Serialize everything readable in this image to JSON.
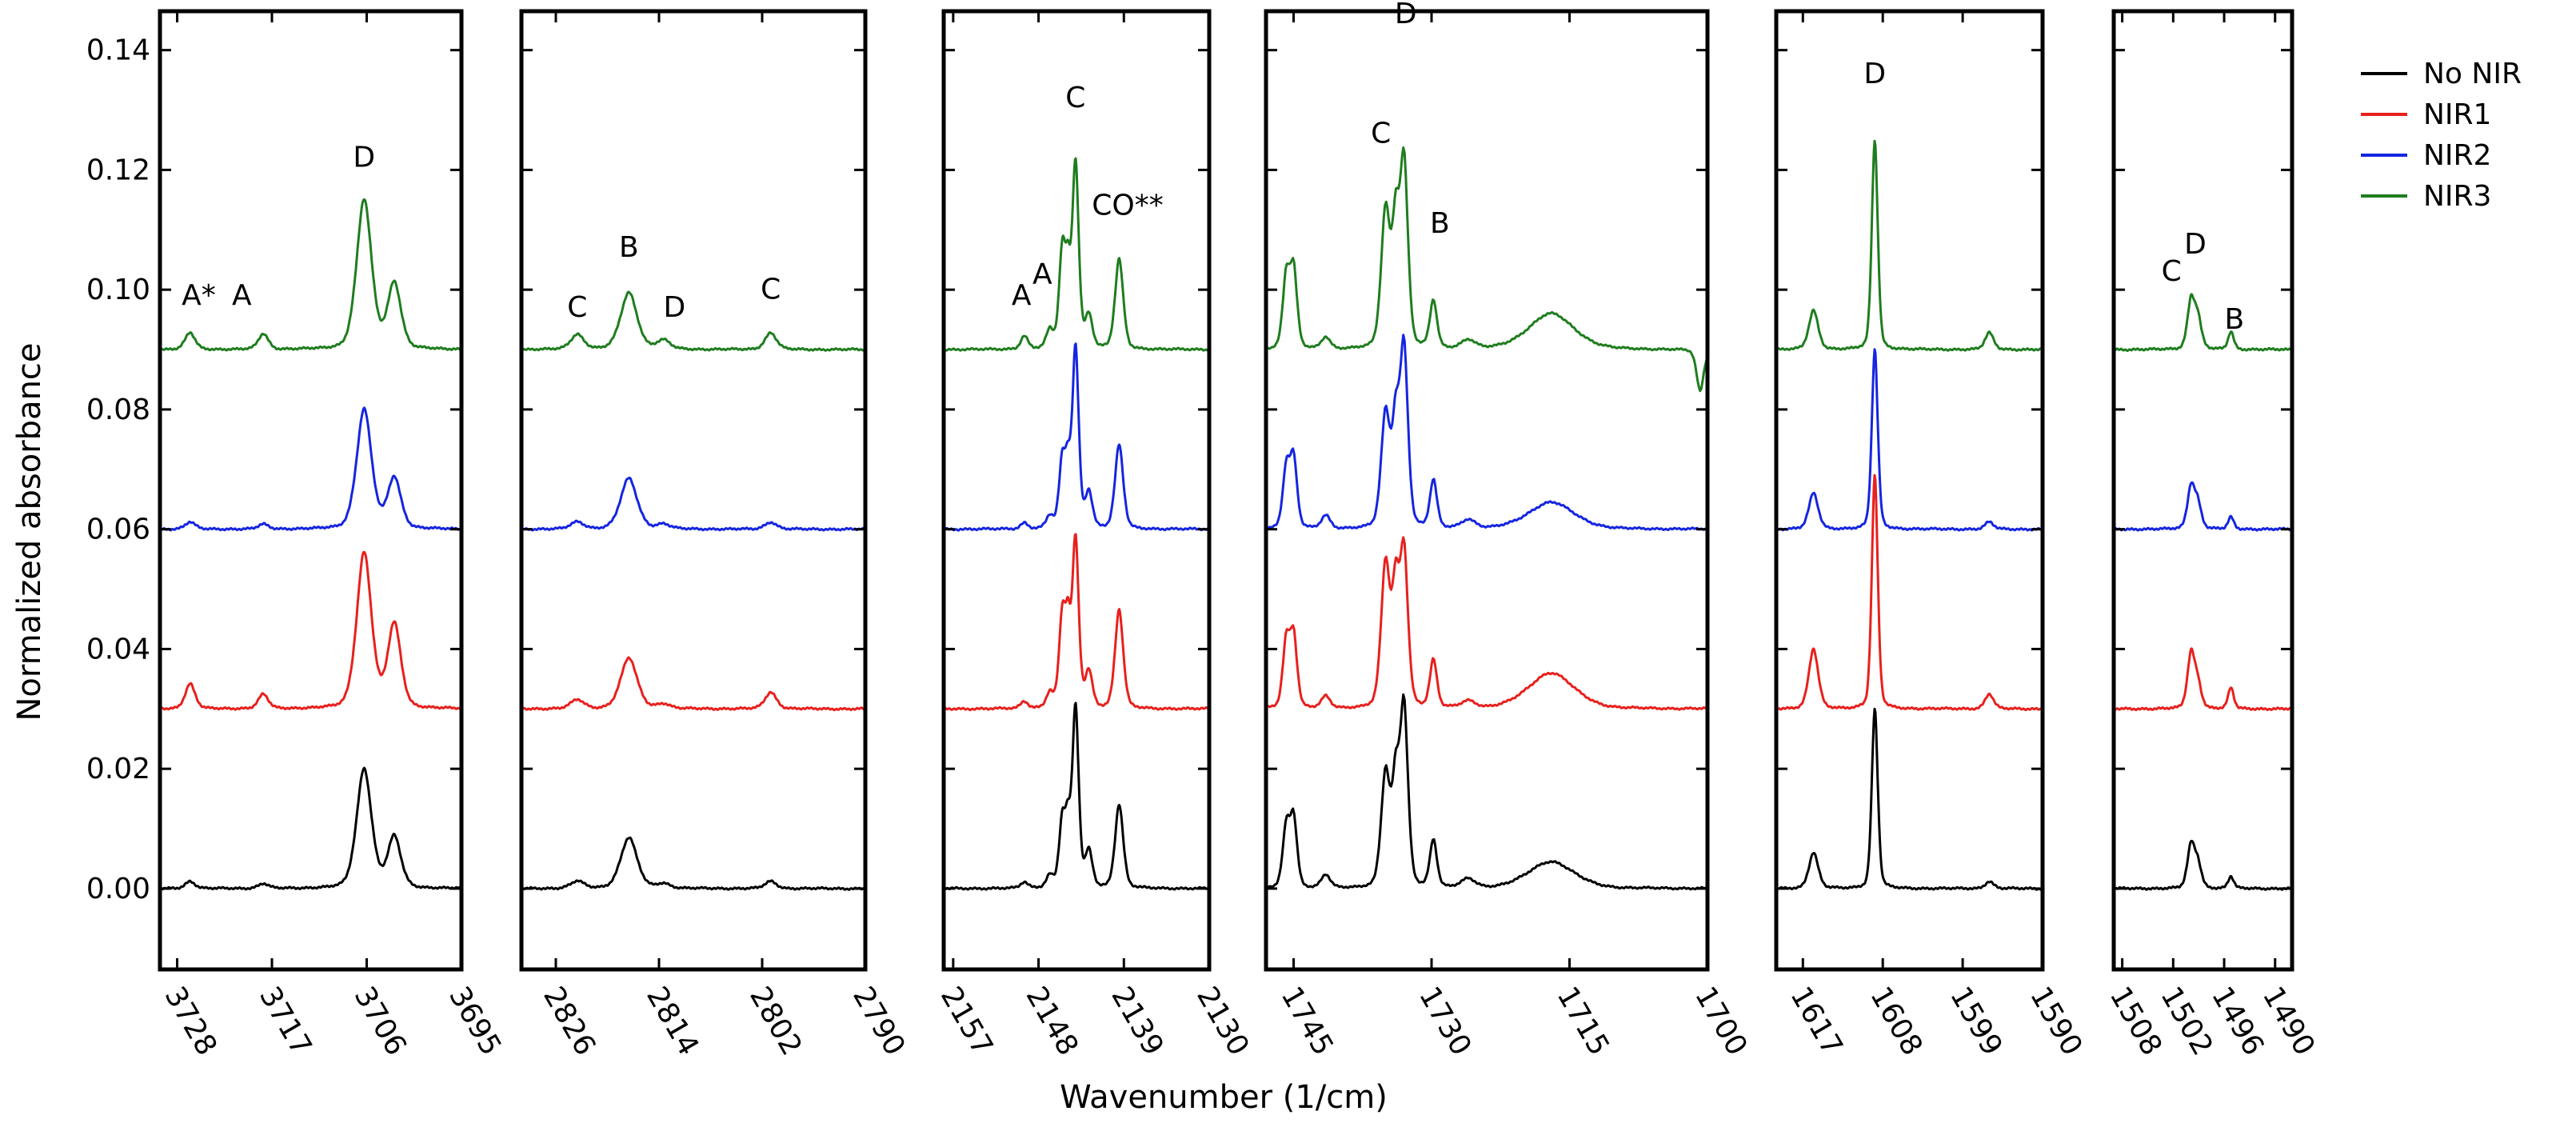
{
  "chart_data": {
    "type": "line",
    "title": "",
    "xlabel": "Wavenumber (1/cm)",
    "ylabel": "Normalized absorbance",
    "ylim": [
      -0.0135,
      0.1465
    ],
    "yticks": [
      0.0,
      0.02,
      0.04,
      0.06,
      0.08,
      0.1,
      0.12,
      0.14
    ],
    "ytick_labels": [
      "0.00",
      "0.02",
      "0.04",
      "0.06",
      "0.08",
      "0.10",
      "0.12",
      "0.14"
    ],
    "legend": {
      "placement": "right",
      "entries": [
        {
          "name": "No NIR",
          "color": "#000000"
        },
        {
          "name": "NIR1",
          "color": "#e8201d"
        },
        {
          "name": "NIR2",
          "color": "#1525e0"
        },
        {
          "name": "NIR3",
          "color": "#1e7d1e"
        }
      ]
    },
    "series": [
      {
        "name": "No NIR",
        "offset": 0.0,
        "scale": 1.0,
        "color": "#000000"
      },
      {
        "name": "NIR1",
        "offset": 0.03,
        "scale": 1.35,
        "color": "#e8201d"
      },
      {
        "name": "NIR2",
        "offset": 0.06,
        "scale": 1.1,
        "color": "#1525e0"
      },
      {
        "name": "NIR3",
        "offset": 0.09,
        "scale": 1.15,
        "color": "#1e7d1e"
      }
    ],
    "panels": [
      {
        "id": "p1",
        "xlim": [
          3730,
          3695
        ],
        "ticks": [
          3728,
          3717,
          3706,
          3695
        ],
        "tick_labels": [
          "3728",
          "3717",
          "3706",
          "3695"
        ],
        "peaks": [
          [
            3726.5,
            0.0012,
            0.6
          ],
          [
            3718,
            0.0008,
            0.6
          ],
          [
            3706.3,
            0.02,
            0.9
          ],
          [
            3702.8,
            0.0085,
            0.8
          ]
        ],
        "overrides": {
          "NIR1": [
            [
              3726.5,
              0.0042,
              0.6
            ],
            [
              3718,
              0.0024,
              0.6
            ],
            [
              3706.3,
              0.026,
              0.9
            ],
            [
              3702.8,
              0.014,
              0.8
            ]
          ],
          "NIR3": [
            [
              3726.5,
              0.0028,
              0.6
            ],
            [
              3718,
              0.0026,
              0.6
            ],
            [
              3706.3,
              0.025,
              0.9
            ],
            [
              3702.8,
              0.011,
              0.8
            ]
          ]
        },
        "annotations": [
          {
            "text": "A*",
            "x": 3725.5,
            "y": 0.0975
          },
          {
            "text": "A",
            "x": 3720.5,
            "y": 0.0975
          },
          {
            "text": "D",
            "x": 3706.3,
            "y": 0.1205
          }
        ]
      },
      {
        "id": "p2",
        "xlim": [
          2830,
          2790
        ],
        "ticks": [
          2826,
          2814,
          2802,
          2790
        ],
        "tick_labels": [
          "2826",
          "2814",
          "2802",
          "2790"
        ],
        "peaks": [
          [
            2823.5,
            0.0012,
            0.8
          ],
          [
            2817.5,
            0.0085,
            1.0
          ],
          [
            2813.5,
            0.0008,
            0.8
          ],
          [
            2801,
            0.0012,
            0.7
          ]
        ],
        "overrides": {
          "NIR1": [
            [
              2823.5,
              0.0015,
              0.8
            ],
            [
              2817.5,
              0.0085,
              1.0
            ],
            [
              2813.5,
              0.0008,
              0.8
            ],
            [
              2801,
              0.0028,
              0.7
            ]
          ],
          "NIR3": [
            [
              2823.5,
              0.0025,
              0.8
            ],
            [
              2817.5,
              0.0095,
              1.0
            ],
            [
              2813.5,
              0.0015,
              0.8
            ],
            [
              2801,
              0.0028,
              0.7
            ]
          ]
        },
        "annotations": [
          {
            "text": "C",
            "x": 2823.5,
            "y": 0.0955
          },
          {
            "text": "B",
            "x": 2817.5,
            "y": 0.1055
          },
          {
            "text": "D",
            "x": 2812.2,
            "y": 0.0955
          },
          {
            "text": "C",
            "x": 2801,
            "y": 0.0985
          }
        ]
      },
      {
        "id": "p3",
        "xlim": [
          2158,
          2130
        ],
        "ticks": [
          2157,
          2148,
          2139,
          2130
        ],
        "tick_labels": [
          "2157",
          "2148",
          "2139",
          "2130"
        ],
        "peaks": [
          [
            2149.5,
            0.001,
            0.4
          ],
          [
            2146.8,
            0.002,
            0.4
          ],
          [
            2145.5,
            0.011,
            0.35
          ],
          [
            2144.9,
            0.009,
            0.3
          ],
          [
            2144.1,
            0.03,
            0.35
          ],
          [
            2142.7,
            0.006,
            0.4
          ],
          [
            2139.5,
            0.014,
            0.45
          ]
        ],
        "overrides": {
          "NIR1": [
            [
              2149.5,
              0.0012,
              0.4
            ],
            [
              2146.8,
              0.0025,
              0.4
            ],
            [
              2145.5,
              0.015,
              0.35
            ],
            [
              2144.9,
              0.012,
              0.3
            ],
            [
              2144.1,
              0.028,
              0.35
            ],
            [
              2142.7,
              0.006,
              0.4
            ],
            [
              2139.5,
              0.0165,
              0.45
            ]
          ],
          "NIR3": [
            [
              2149.5,
              0.0022,
              0.4
            ],
            [
              2146.8,
              0.003,
              0.4
            ],
            [
              2145.5,
              0.016,
              0.35
            ],
            [
              2144.9,
              0.011,
              0.3
            ],
            [
              2144.1,
              0.031,
              0.35
            ],
            [
              2142.7,
              0.0055,
              0.4
            ],
            [
              2139.5,
              0.015,
              0.45
            ]
          ]
        },
        "annotations": [
          {
            "text": "A",
            "x": 2149.8,
            "y": 0.0975
          },
          {
            "text": "A",
            "x": 2147.6,
            "y": 0.101
          },
          {
            "text": "C",
            "x": 2144.1,
            "y": 0.1305
          },
          {
            "text": "CO**",
            "x": 2138.6,
            "y": 0.1125
          }
        ]
      },
      {
        "id": "p4",
        "xlim": [
          1748,
          1700
        ],
        "ticks": [
          1745,
          1730,
          1715,
          1700
        ],
        "tick_labels": [
          "1745",
          "1730",
          "1715",
          "1700"
        ],
        "peaks": [
          [
            1745.8,
            0.01,
            0.4
          ],
          [
            1745.0,
            0.0115,
            0.4
          ],
          [
            1741.5,
            0.0022,
            0.5
          ],
          [
            1735.0,
            0.019,
            0.5
          ],
          [
            1733.9,
            0.016,
            0.4
          ],
          [
            1733.0,
            0.03,
            0.45
          ],
          [
            1729.8,
            0.008,
            0.4
          ],
          [
            1726.0,
            0.0015,
            0.8
          ],
          [
            1717.0,
            0.0045,
            2.6
          ]
        ],
        "overrides": {
          "NIR1": [
            [
              1745.8,
              0.011,
              0.4
            ],
            [
              1745.0,
              0.012,
              0.4
            ],
            [
              1741.5,
              0.002,
              0.5
            ],
            [
              1735.0,
              0.024,
              0.5
            ],
            [
              1733.9,
              0.018,
              0.4
            ],
            [
              1733.0,
              0.026,
              0.45
            ],
            [
              1729.8,
              0.008,
              0.4
            ],
            [
              1726.0,
              0.0012,
              0.8
            ],
            [
              1717.0,
              0.006,
              2.6
            ]
          ],
          "NIR3": [
            [
              1745.8,
              0.012,
              0.4
            ],
            [
              1745.0,
              0.013,
              0.4
            ],
            [
              1741.5,
              0.002,
              0.5
            ],
            [
              1735.0,
              0.023,
              0.5
            ],
            [
              1733.9,
              0.019,
              0.4
            ],
            [
              1733.0,
              0.031,
              0.45
            ],
            [
              1729.8,
              0.008,
              0.4
            ],
            [
              1726.0,
              0.0015,
              0.8
            ],
            [
              1717.0,
              0.006,
              2.6
            ],
            [
              1700.8,
              -0.007,
              0.4
            ]
          ]
        },
        "annotations": [
          {
            "text": "C",
            "x": 1735.5,
            "y": 0.1245
          },
          {
            "text": "D",
            "x": 1732.8,
            "y": 0.1445
          },
          {
            "text": "B",
            "x": 1729.1,
            "y": 0.1095
          }
        ]
      },
      {
        "id": "p5",
        "xlim": [
          1620,
          1590
        ],
        "ticks": [
          1617,
          1608,
          1599,
          1590
        ],
        "tick_labels": [
          "1617",
          "1608",
          "1599",
          "1590"
        ],
        "peaks": [
          [
            1615.8,
            0.006,
            0.55
          ],
          [
            1608.9,
            0.03,
            0.35
          ],
          [
            1596.0,
            0.0012,
            0.5
          ]
        ],
        "overrides": {
          "NIR1": [
            [
              1615.8,
              0.01,
              0.55
            ],
            [
              1608.9,
              0.039,
              0.35
            ],
            [
              1596.0,
              0.0025,
              0.5
            ]
          ],
          "NIR3": [
            [
              1615.8,
              0.0065,
              0.55
            ],
            [
              1608.9,
              0.035,
              0.35
            ],
            [
              1596.0,
              0.0028,
              0.5
            ]
          ]
        },
        "annotations": [
          {
            "text": "D",
            "x": 1608.9,
            "y": 0.1345
          }
        ]
      },
      {
        "id": "p6",
        "xlim": [
          1509,
          1488
        ],
        "ticks": [
          1508,
          1502,
          1496,
          1490
        ],
        "tick_labels": [
          "1508",
          "1502",
          "1496",
          "1490"
        ],
        "peaks": [
          [
            1499.9,
            0.007,
            0.45
          ],
          [
            1499.1,
            0.004,
            0.45
          ],
          [
            1495.2,
            0.002,
            0.35
          ]
        ],
        "overrides": {
          "NIR1": [
            [
              1499.9,
              0.009,
              0.45
            ],
            [
              1499.1,
              0.004,
              0.45
            ],
            [
              1495.2,
              0.0035,
              0.35
            ]
          ],
          "NIR3": [
            [
              1499.9,
              0.008,
              0.45
            ],
            [
              1499.1,
              0.005,
              0.45
            ],
            [
              1495.2,
              0.003,
              0.35
            ]
          ]
        },
        "annotations": [
          {
            "text": "C",
            "x": 1502.2,
            "y": 0.1015
          },
          {
            "text": "D",
            "x": 1499.4,
            "y": 0.106
          },
          {
            "text": "B",
            "x": 1494.8,
            "y": 0.0935
          }
        ]
      }
    ]
  }
}
